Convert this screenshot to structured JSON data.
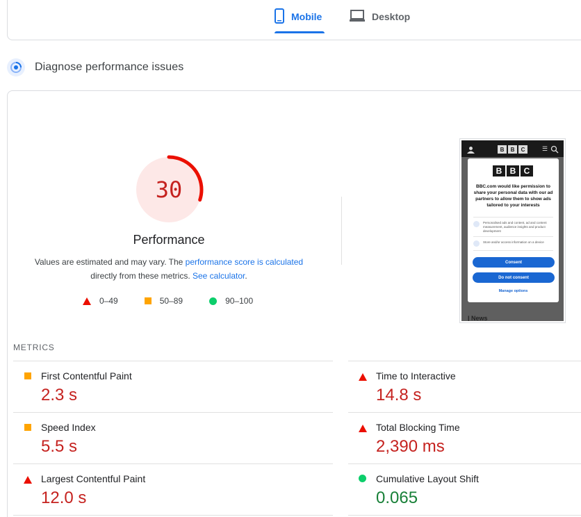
{
  "tabs": [
    {
      "label": "Mobile",
      "active": true,
      "icon": "mobile-phone-icon"
    },
    {
      "label": "Desktop",
      "active": false,
      "icon": "laptop-icon"
    }
  ],
  "section": {
    "title": "Diagnose performance issues",
    "icon": "diagnose-target-icon"
  },
  "score": {
    "value": "30",
    "fraction": 0.3,
    "title": "Performance",
    "desc_part1": "Values are estimated and may vary. The ",
    "desc_link1": "performance score is calculated",
    "desc_part2": " directly from these metrics. ",
    "desc_link2": "See calculator",
    "desc_part3": "."
  },
  "legend": [
    {
      "range": "0–49",
      "shape": "triangle",
      "color": "#eb0f00"
    },
    {
      "range": "50–89",
      "shape": "square",
      "color": "#ffa400"
    },
    {
      "range": "90–100",
      "shape": "circle",
      "color": "#0cce6b"
    }
  ],
  "thumbnail": {
    "logo_letters": [
      "B",
      "B",
      "C"
    ],
    "message": "BBC.com would like permission to share your personal data with our ad partners to allow them to show ads tailored to your interests",
    "option1": "Personalised ads and content, ad and content measurement, audience insights and product development",
    "option2": "Store and/or access information on a device",
    "consent": "Consent",
    "do_not_consent": "Do not consent",
    "manage": "Manage options",
    "news": "| News"
  },
  "metrics": {
    "label": "METRICS",
    "items": [
      {
        "name": "First Contentful Paint",
        "value": "2.3 s",
        "rating": "average"
      },
      {
        "name": "Time to Interactive",
        "value": "14.8 s",
        "rating": "poor"
      },
      {
        "name": "Speed Index",
        "value": "5.5 s",
        "rating": "average"
      },
      {
        "name": "Total Blocking Time",
        "value": "2,390 ms",
        "rating": "poor"
      },
      {
        "name": "Largest Contentful Paint",
        "value": "12.0 s",
        "rating": "poor"
      },
      {
        "name": "Cumulative Layout Shift",
        "value": "0.065",
        "rating": "good"
      }
    ]
  },
  "colors": {
    "accent": "#1a73e8",
    "poor": "#c5221f",
    "good": "#188038",
    "average_marker": "#ffa400"
  }
}
